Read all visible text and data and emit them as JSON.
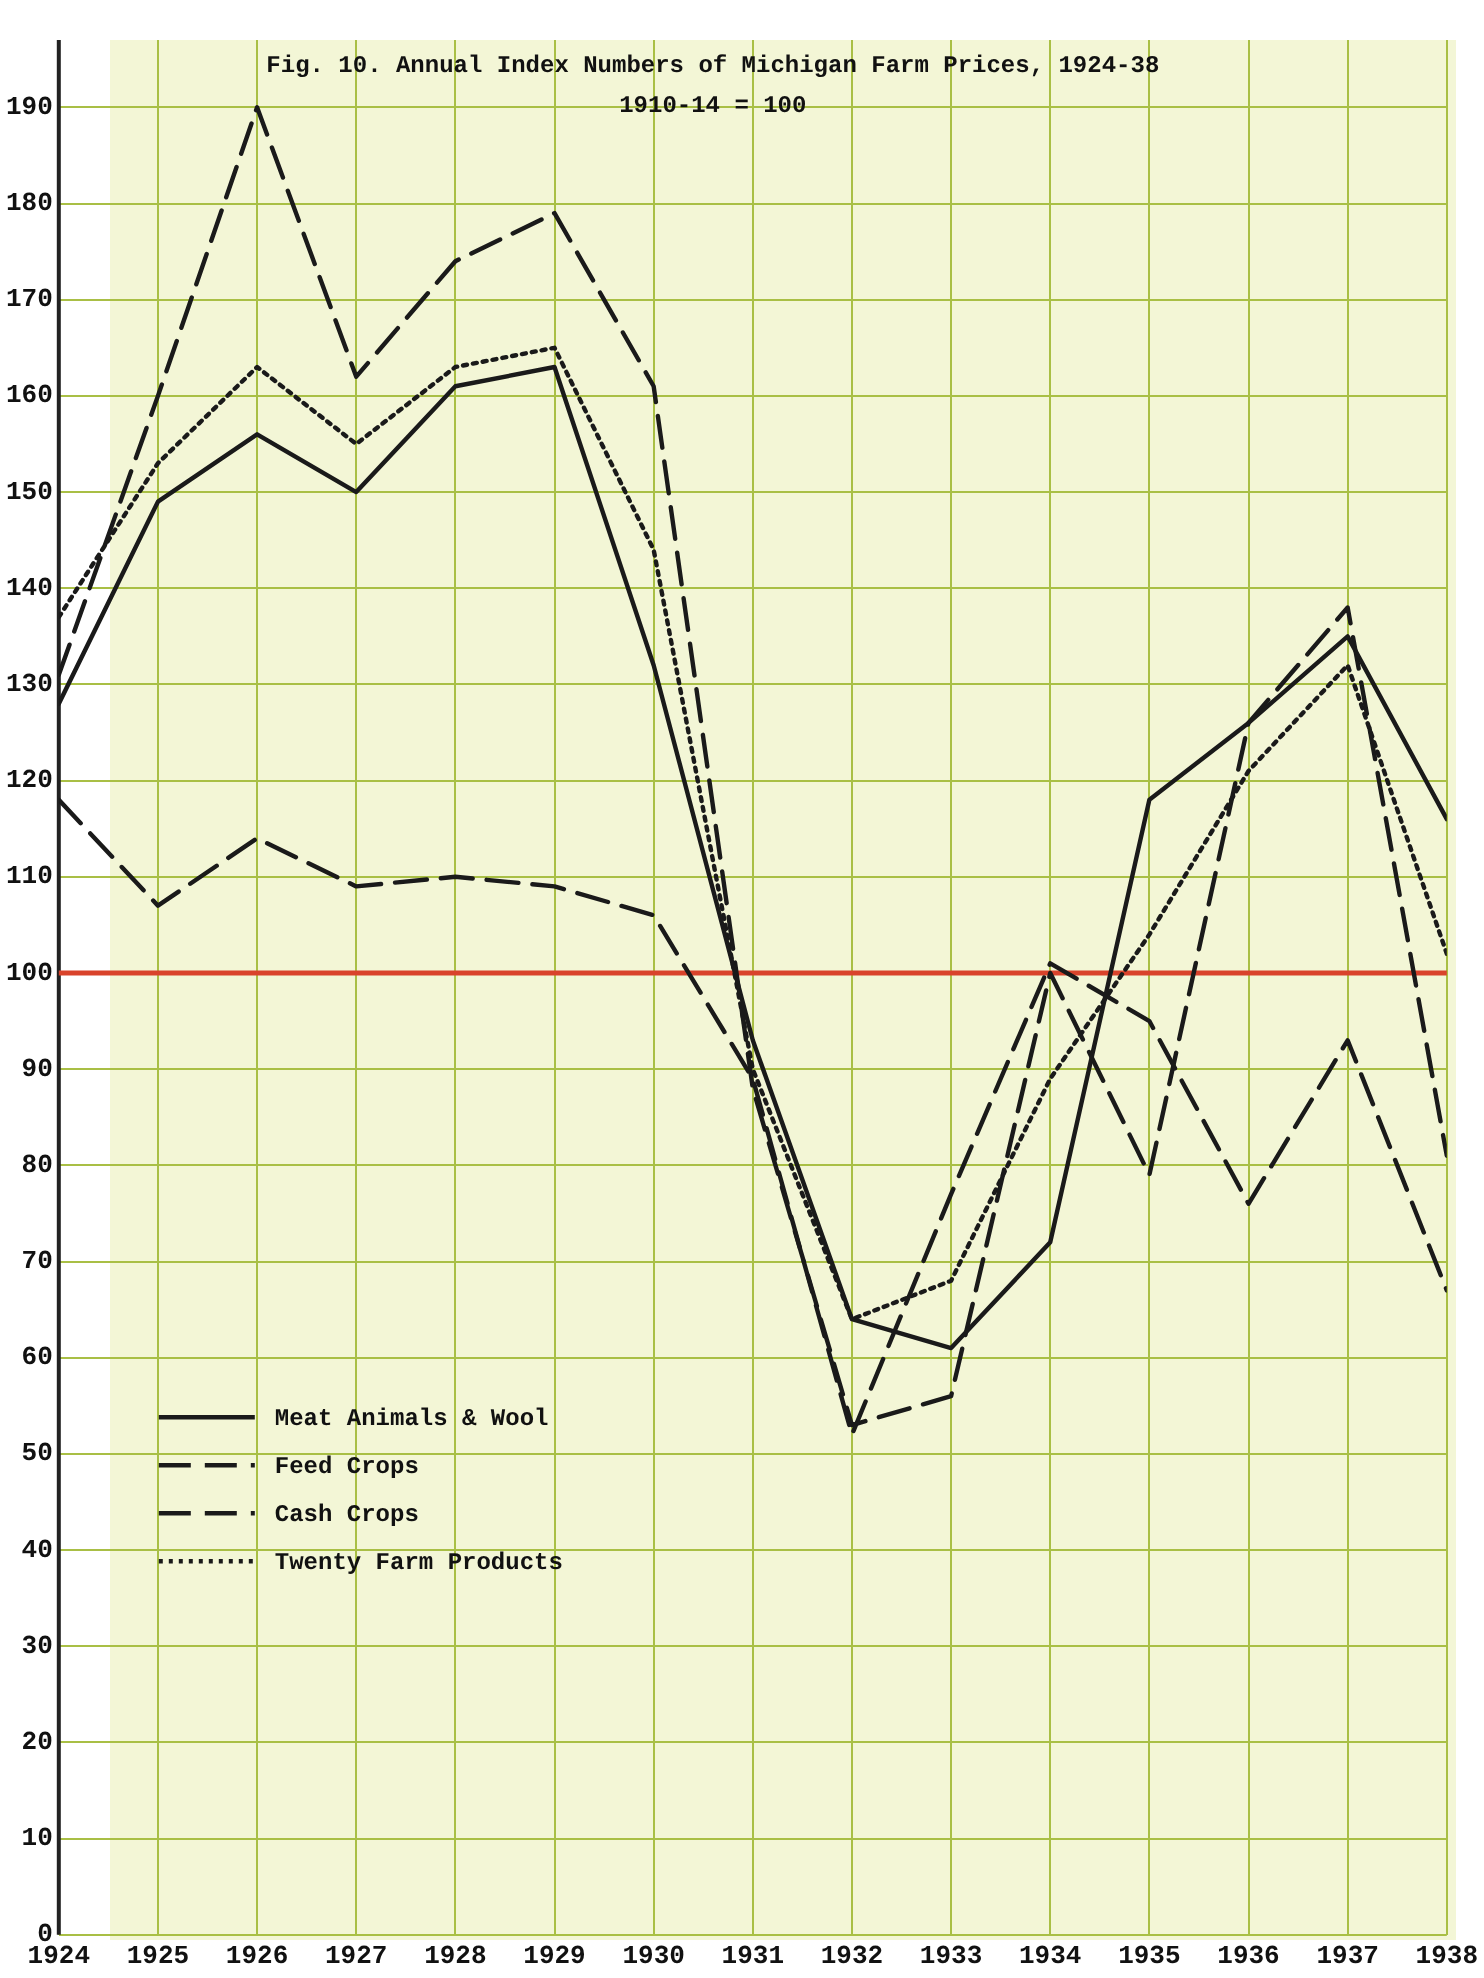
{
  "chart_data": {
    "type": "line",
    "title": "Fig. 10. Annual Index Numbers of Michigan Farm Prices, 1924-38",
    "subtitle": "1910-14 = 100",
    "x": [
      1924,
      1925,
      1926,
      1927,
      1928,
      1929,
      1930,
      1931,
      1932,
      1933,
      1934,
      1935,
      1936,
      1937,
      1938
    ],
    "series": [
      {
        "name": "Meat Animals & Wool",
        "color": "#1a1a1a",
        "line_style": "solid",
        "values": [
          128,
          149,
          156,
          150,
          161,
          163,
          132,
          93,
          64,
          61,
          72,
          118,
          126,
          135,
          116
        ]
      },
      {
        "name": "Feed Crops",
        "color": "#1a1a1a",
        "line_style": "dashed",
        "values": [
          118,
          107,
          114,
          109,
          110,
          109,
          106,
          89,
          52,
          77,
          101,
          95,
          76,
          93,
          67
        ]
      },
      {
        "name": "Cash Crops",
        "color": "#1a1a1a",
        "line_style": "dashed",
        "values": [
          131,
          160,
          190,
          162,
          174,
          179,
          161,
          88,
          53,
          56,
          100,
          79,
          126,
          138,
          81
        ]
      },
      {
        "name": "Twenty Farm Products",
        "color": "#1a1a1a",
        "line_style": "dotted",
        "values": [
          137,
          153,
          163,
          155,
          163,
          165,
          144,
          90,
          64,
          68,
          89,
          104,
          121,
          132,
          102
        ]
      }
    ],
    "xlim": [
      1924,
      1938
    ],
    "xticks": [
      1924,
      1925,
      1926,
      1927,
      1928,
      1929,
      1930,
      1931,
      1932,
      1933,
      1934,
      1935,
      1936,
      1937,
      1938
    ],
    "ylim": [
      0,
      197
    ],
    "yticks": [
      0,
      10,
      20,
      30,
      40,
      50,
      60,
      70,
      80,
      90,
      100,
      110,
      120,
      130,
      140,
      150,
      160,
      170,
      180,
      190
    ],
    "ref_lines": [
      {
        "axis": "y",
        "value": 100,
        "color": "#d9432b"
      }
    ],
    "grid": true,
    "legend": "bottom left",
    "marker": "none"
  }
}
